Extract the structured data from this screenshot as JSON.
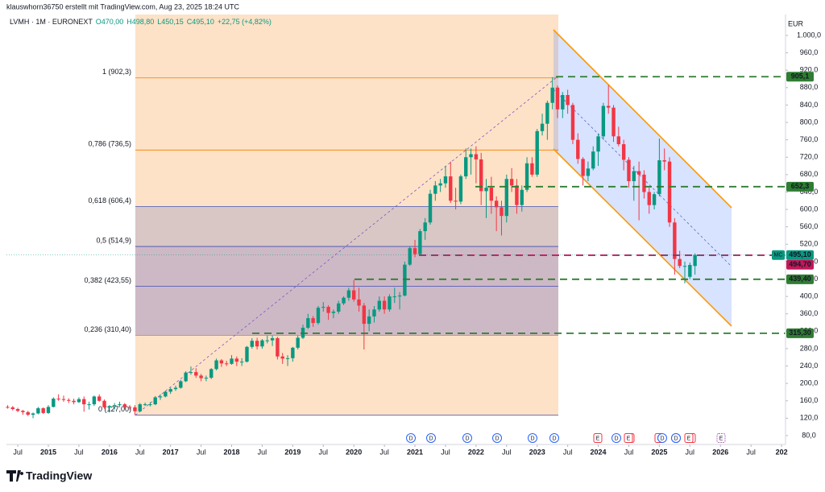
{
  "header": {
    "credit": "klauswhorn36750 erstellt mit TradingView.com, Aug 23, 2025 18:24 UTC",
    "symbol": "LVMH · 1M · EURONEXT",
    "o": "O470,00",
    "h": "H498,80",
    "l": "L450,15",
    "c": "C495,10",
    "change": "+22,75 (+4,82%)",
    "brand": "TradingView"
  },
  "chart_data": {
    "type": "candlestick",
    "currency": "EUR",
    "x": [
      "2014-05",
      "2014-06",
      "2014-07",
      "2014-08",
      "2014-09",
      "2014-10",
      "2014-11",
      "2014-12",
      "2015-01",
      "2015-02",
      "2015-03",
      "2015-04",
      "2015-05",
      "2015-06",
      "2015-07",
      "2015-08",
      "2015-09",
      "2015-10",
      "2015-11",
      "2015-12",
      "2016-01",
      "2016-02",
      "2016-03",
      "2016-04",
      "2016-05",
      "2016-06",
      "2016-07",
      "2016-08",
      "2016-09",
      "2016-10",
      "2016-11",
      "2016-12",
      "2017-01",
      "2017-02",
      "2017-03",
      "2017-04",
      "2017-05",
      "2017-06",
      "2017-07",
      "2017-08",
      "2017-09",
      "2017-10",
      "2017-11",
      "2017-12",
      "2018-01",
      "2018-02",
      "2018-03",
      "2018-04",
      "2018-05",
      "2018-06",
      "2018-07",
      "2018-08",
      "2018-09",
      "2018-10",
      "2018-11",
      "2018-12",
      "2019-01",
      "2019-02",
      "2019-03",
      "2019-04",
      "2019-05",
      "2019-06",
      "2019-07",
      "2019-08",
      "2019-09",
      "2019-10",
      "2019-11",
      "2019-12",
      "2020-01",
      "2020-02",
      "2020-03",
      "2020-04",
      "2020-05",
      "2020-06",
      "2020-07",
      "2020-08",
      "2020-09",
      "2020-10",
      "2020-11",
      "2020-12",
      "2021-01",
      "2021-02",
      "2021-03",
      "2021-04",
      "2021-05",
      "2021-06",
      "2021-07",
      "2021-08",
      "2021-09",
      "2021-10",
      "2021-11",
      "2021-12",
      "2022-01",
      "2022-02",
      "2022-03",
      "2022-04",
      "2022-05",
      "2022-06",
      "2022-07",
      "2022-08",
      "2022-09",
      "2022-10",
      "2022-11",
      "2022-12",
      "2023-01",
      "2023-02",
      "2023-03",
      "2023-04",
      "2023-05",
      "2023-06",
      "2023-07",
      "2023-08",
      "2023-09",
      "2023-10",
      "2023-11",
      "2023-12",
      "2024-01",
      "2024-02",
      "2024-03",
      "2024-04",
      "2024-05",
      "2024-06",
      "2024-07",
      "2024-08",
      "2024-09",
      "2024-10",
      "2024-11",
      "2024-12",
      "2025-01",
      "2025-02",
      "2025-03",
      "2025-04",
      "2025-05",
      "2025-06",
      "2025-07",
      "2025-08"
    ],
    "open": [
      146,
      145,
      141,
      137,
      134,
      128,
      131,
      143,
      132,
      146,
      165,
      164,
      162,
      160,
      157,
      164,
      152,
      152,
      170,
      160,
      145,
      148,
      150,
      152,
      146,
      145,
      136,
      152,
      152,
      152,
      168,
      170,
      181,
      187,
      190,
      205,
      225,
      226,
      218,
      212,
      213,
      233,
      253,
      246,
      245,
      257,
      250,
      250,
      284,
      298,
      285,
      299,
      299,
      304,
      262,
      257,
      258,
      282,
      305,
      328,
      350,
      339,
      374,
      376,
      362,
      365,
      384,
      397,
      414,
      393,
      379,
      337,
      354,
      370,
      390,
      370,
      400,
      400,
      402,
      473,
      511,
      497,
      550,
      570,
      636,
      655,
      660,
      676,
      620,
      618,
      676,
      720,
      727,
      715,
      642,
      650,
      620,
      605,
      585,
      670,
      655,
      610,
      645,
      706,
      680,
      780,
      797,
      845,
      880,
      830,
      863,
      840,
      760,
      716,
      677,
      694,
      733,
      768,
      838,
      834,
      768,
      750,
      714,
      665,
      688,
      680,
      640,
      610,
      635,
      713,
      710,
      570,
      486,
      470,
      445,
      470
    ],
    "high": [
      150,
      148,
      144,
      139,
      137,
      133,
      146,
      145,
      150,
      168,
      175,
      172,
      166,
      165,
      168,
      170,
      158,
      172,
      175,
      163,
      150,
      155,
      158,
      155,
      150,
      150,
      155,
      156,
      157,
      171,
      175,
      183,
      190,
      195,
      208,
      228,
      239,
      235,
      222,
      218,
      235,
      257,
      256,
      252,
      265,
      262,
      258,
      286,
      304,
      305,
      302,
      310,
      310,
      307,
      270,
      265,
      284,
      310,
      335,
      360,
      355,
      378,
      387,
      380,
      370,
      390,
      400,
      420,
      438,
      420,
      385,
      370,
      378,
      400,
      400,
      405,
      420,
      410,
      480,
      515,
      530,
      555,
      580,
      645,
      665,
      670,
      700,
      710,
      650,
      680,
      740,
      740,
      745,
      730,
      670,
      675,
      630,
      620,
      680,
      695,
      670,
      655,
      720,
      720,
      785,
      820,
      850,
      904,
      885,
      870,
      875,
      845,
      775,
      720,
      710,
      745,
      775,
      845,
      886,
      840,
      790,
      760,
      720,
      700,
      710,
      690,
      650,
      640,
      763,
      740,
      720,
      580,
      505,
      480,
      478,
      498.8
    ],
    "low": [
      142,
      138,
      134,
      128,
      125,
      120,
      129,
      130,
      130,
      145,
      160,
      158,
      155,
      152,
      155,
      135,
      140,
      148,
      158,
      142,
      133,
      140,
      145,
      143,
      140,
      127,
      134,
      148,
      147,
      150,
      162,
      168,
      176,
      183,
      188,
      203,
      220,
      213,
      205,
      205,
      210,
      230,
      238,
      240,
      243,
      240,
      240,
      248,
      280,
      278,
      280,
      292,
      286,
      255,
      245,
      240,
      250,
      278,
      302,
      325,
      330,
      335,
      365,
      346,
      350,
      360,
      380,
      390,
      388,
      365,
      278,
      320,
      340,
      365,
      360,
      365,
      385,
      370,
      400,
      470,
      490,
      495,
      530,
      565,
      620,
      640,
      650,
      615,
      600,
      612,
      670,
      680,
      660,
      610,
      580,
      590,
      550,
      540,
      570,
      640,
      590,
      595,
      640,
      675,
      675,
      770,
      760,
      830,
      810,
      810,
      820,
      750,
      705,
      655,
      665,
      690,
      700,
      760,
      820,
      755,
      745,
      690,
      650,
      620,
      575,
      625,
      590,
      600,
      630,
      690,
      560,
      450,
      465,
      430,
      440,
      450.15
    ],
    "close": [
      145,
      141,
      137,
      134,
      128,
      131,
      143,
      132,
      146,
      165,
      164,
      162,
      160,
      157,
      164,
      152,
      152,
      170,
      160,
      145,
      148,
      150,
      152,
      146,
      145,
      136,
      152,
      152,
      152,
      168,
      170,
      181,
      187,
      190,
      205,
      225,
      226,
      218,
      212,
      213,
      233,
      253,
      246,
      245,
      257,
      250,
      250,
      284,
      298,
      285,
      299,
      299,
      304,
      262,
      257,
      258,
      282,
      305,
      328,
      350,
      339,
      374,
      376,
      362,
      365,
      384,
      397,
      414,
      393,
      379,
      337,
      354,
      370,
      390,
      370,
      400,
      400,
      402,
      473,
      511,
      497,
      550,
      570,
      636,
      655,
      660,
      676,
      620,
      618,
      676,
      720,
      727,
      715,
      642,
      650,
      620,
      605,
      585,
      670,
      655,
      610,
      645,
      706,
      680,
      780,
      797,
      845,
      880,
      830,
      863,
      840,
      760,
      716,
      677,
      694,
      733,
      768,
      838,
      834,
      768,
      750,
      714,
      665,
      688,
      680,
      640,
      610,
      635,
      713,
      710,
      570,
      486,
      470,
      470,
      472.35,
      495.1
    ],
    "up_color": "#089981",
    "down_color": "#f23645",
    "ylim": [
      59.6,
      1048.1
    ],
    "yticks": [
      {
        "value": 1000,
        "label": "1.000,0"
      },
      {
        "value": 960,
        "label": "960,0"
      },
      {
        "value": 920,
        "label": "920,0"
      },
      {
        "value": 880,
        "label": "880,0"
      },
      {
        "value": 840,
        "label": "840,0"
      },
      {
        "value": 800,
        "label": "800,0"
      },
      {
        "value": 760,
        "label": "760,0"
      },
      {
        "value": 720,
        "label": "720,0"
      },
      {
        "value": 680,
        "label": "680,0"
      },
      {
        "value": 640,
        "label": "640,0"
      },
      {
        "value": 600,
        "label": "600,0"
      },
      {
        "value": 560,
        "label": "560,0"
      },
      {
        "value": 520,
        "label": "520,0"
      },
      {
        "value": 480,
        "label": "480,0"
      },
      {
        "value": 440,
        "label": "440,0"
      },
      {
        "value": 400,
        "label": "400,0"
      },
      {
        "value": 360,
        "label": "360,0"
      },
      {
        "value": 320,
        "label": "320,0"
      },
      {
        "value": 280,
        "label": "280,0"
      },
      {
        "value": 240,
        "label": "240,0"
      },
      {
        "value": 200,
        "label": "200,0"
      },
      {
        "value": 160,
        "label": "160,0"
      },
      {
        "value": 120,
        "label": "120,0"
      },
      {
        "value": 80,
        "label": "80,0"
      }
    ],
    "xticks": [
      {
        "value": "2014-07",
        "label": "Jul"
      },
      {
        "value": "2015-01",
        "label": "2015"
      },
      {
        "value": "2015-07",
        "label": "Jul"
      },
      {
        "value": "2016-01",
        "label": "2016"
      },
      {
        "value": "2016-07",
        "label": "Jul"
      },
      {
        "value": "2017-01",
        "label": "2017"
      },
      {
        "value": "2017-07",
        "label": "Jul"
      },
      {
        "value": "2018-01",
        "label": "2018"
      },
      {
        "value": "2018-07",
        "label": "Jul"
      },
      {
        "value": "2019-01",
        "label": "2019"
      },
      {
        "value": "2019-07",
        "label": "Jul"
      },
      {
        "value": "2020-01",
        "label": "2020"
      },
      {
        "value": "2020-07",
        "label": "Jul"
      },
      {
        "value": "2021-01",
        "label": "2021"
      },
      {
        "value": "2021-07",
        "label": "Jul"
      },
      {
        "value": "2022-01",
        "label": "2022"
      },
      {
        "value": "2022-07",
        "label": "Jul"
      },
      {
        "value": "2023-01",
        "label": "2023"
      },
      {
        "value": "2023-07",
        "label": "Jul"
      },
      {
        "value": "2024-01",
        "label": "2024"
      },
      {
        "value": "2024-07",
        "label": "Jul"
      },
      {
        "value": "2025-01",
        "label": "2025"
      },
      {
        "value": "2025-07",
        "label": "Jul"
      },
      {
        "value": "2026-01",
        "label": "2026"
      },
      {
        "value": "2026-07",
        "label": "Jul"
      },
      {
        "value": "2027-01",
        "label": "202"
      }
    ],
    "fib": [
      {
        "value": 902.3,
        "label": "1 (902,3)",
        "color": "#f57c00"
      },
      {
        "value": 736.5,
        "label": "0,786 (736,5)",
        "color": "#f57c00"
      },
      {
        "value": 606.4,
        "label": "0,618 (606,4)",
        "color": "#3f51b5"
      },
      {
        "value": 514.9,
        "label": "0,5 (514,9)",
        "color": "#3f51b5"
      },
      {
        "value": 423.55,
        "label": "0,382 (423,55)",
        "color": "#3f51b5"
      },
      {
        "value": 310.4,
        "label": "0,236 (310,40)",
        "color": "#f57c00"
      },
      {
        "value": 127,
        "label": "0 (127,00)",
        "color": "#3f51b5"
      }
    ],
    "levels": [
      {
        "value": 905.1,
        "label": "905,1"
      },
      {
        "value": 652.3,
        "label": "652,3"
      },
      {
        "value": 439.4,
        "label": "439,40"
      },
      {
        "value": 315.3,
        "label": "315,30"
      }
    ],
    "level_color": "#2e7d32",
    "last_price": {
      "value": 495.1,
      "label": "495,10",
      "tag": "MC",
      "color": "#089981"
    },
    "red_level": {
      "value": 494.7,
      "label": "494,70",
      "color": "#c2185b"
    },
    "events": [
      "D",
      "D",
      "D",
      "D",
      "D",
      "D",
      "E",
      "D",
      "E",
      "D",
      "E",
      "E",
      "D",
      "E",
      "D",
      "E",
      "E"
    ]
  }
}
